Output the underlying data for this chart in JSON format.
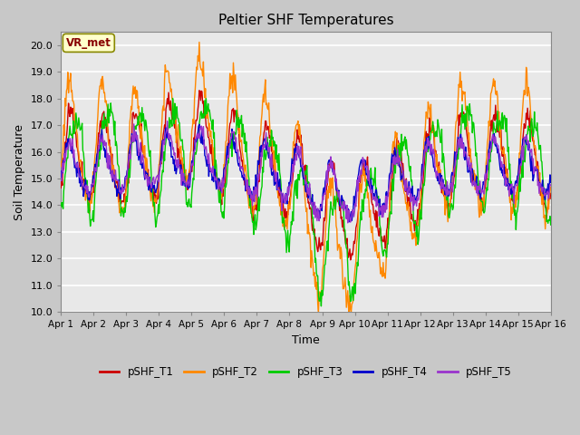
{
  "title": "Peltier SHF Temperatures",
  "xlabel": "Time",
  "ylabel": "Soil Temperature",
  "ylim": [
    10.0,
    20.5
  ],
  "yticks": [
    10.0,
    11.0,
    12.0,
    13.0,
    14.0,
    15.0,
    16.0,
    17.0,
    18.0,
    19.0,
    20.0
  ],
  "xtick_labels": [
    "Apr 1",
    "Apr 2",
    "Apr 3",
    "Apr 4",
    "Apr 5",
    "Apr 6",
    "Apr 7",
    "Apr 8",
    "Apr 9",
    "Apr 10",
    "Apr 11",
    "Apr 12",
    "Apr 13",
    "Apr 14",
    "Apr 15",
    "Apr 16"
  ],
  "annotation_text": "VR_met",
  "series_colors": [
    "#cc0000",
    "#ff8800",
    "#00cc00",
    "#0000cc",
    "#9933cc"
  ],
  "series_labels": [
    "pSHF_T1",
    "pSHF_T2",
    "pSHF_T3",
    "pSHF_T4",
    "pSHF_T5"
  ],
  "bg_color": "#e8e8e8",
  "grid_color": "#ffffff",
  "n_days": 15,
  "pts_per_day": 48,
  "figsize": [
    6.4,
    4.8
  ],
  "dpi": 100
}
